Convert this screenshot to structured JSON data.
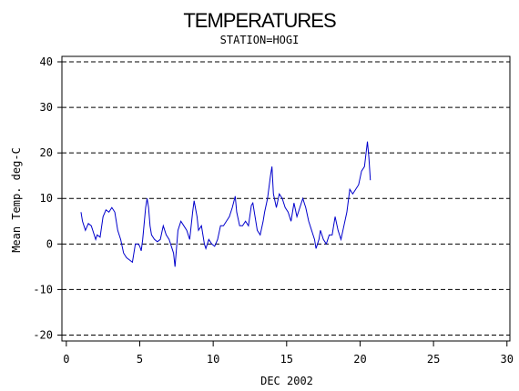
{
  "chart_data": {
    "type": "line",
    "title": "TEMPERATURES",
    "subtitle": "STATION=HOGI",
    "x_label": "DEC 2002",
    "y_label": "Mean Temp. deg-C",
    "xlim": [
      -0.3,
      30.2
    ],
    "ylim": [
      -21.3,
      41.2
    ],
    "xticks": [
      0,
      5,
      10,
      15,
      20,
      25,
      30
    ],
    "yticks": [
      -20,
      -10,
      0,
      10,
      20,
      30,
      40
    ],
    "grid": true,
    "series": [
      {
        "name": "Mean Temp",
        "color": "#0000cc",
        "x": [
          1.0,
          1.1,
          1.3,
          1.5,
          1.7,
          1.9,
          2.0,
          2.1,
          2.3,
          2.5,
          2.7,
          2.9,
          3.1,
          3.3,
          3.5,
          3.7,
          3.9,
          4.1,
          4.3,
          4.5,
          4.7,
          4.9,
          5.0,
          5.1,
          5.2,
          5.4,
          5.5,
          5.6,
          5.7,
          5.8,
          6.0,
          6.2,
          6.4,
          6.6,
          6.8,
          7.0,
          7.2,
          7.3,
          7.4,
          7.5,
          7.6,
          7.8,
          8.0,
          8.2,
          8.4,
          8.6,
          8.7,
          8.9,
          9.0,
          9.2,
          9.4,
          9.5,
          9.7,
          9.9,
          10.1,
          10.3,
          10.5,
          10.7,
          10.9,
          11.1,
          11.3,
          11.5,
          11.6,
          11.8,
          12.0,
          12.2,
          12.4,
          12.6,
          12.7,
          12.9,
          13.0,
          13.2,
          13.4,
          13.5,
          13.7,
          13.9,
          14.0,
          14.1,
          14.3,
          14.5,
          14.7,
          14.9,
          15.1,
          15.3,
          15.5,
          15.7,
          15.9,
          16.1,
          16.3,
          16.5,
          16.7,
          16.9,
          17.0,
          17.2,
          17.3,
          17.5,
          17.7,
          17.9,
          18.1,
          18.3,
          18.5,
          18.7,
          18.9,
          19.1,
          19.3,
          19.5,
          19.7,
          19.9,
          20.1,
          20.3,
          20.5,
          20.6,
          20.7
        ],
        "values": [
          7,
          5,
          3,
          4.5,
          4,
          2,
          1,
          2,
          1.5,
          6,
          7.5,
          7,
          8,
          7,
          3,
          1,
          -2,
          -3,
          -3.5,
          -4,
          0,
          0,
          -0.5,
          -1.5,
          1,
          8,
          10,
          8,
          4,
          2,
          1,
          0.5,
          1,
          4,
          2,
          1,
          -1,
          -2,
          -5,
          -1,
          3,
          5,
          4,
          3,
          1,
          7,
          9.5,
          6,
          3,
          4,
          0,
          -1,
          1,
          0,
          -0.5,
          1,
          4,
          4,
          5,
          6,
          8,
          10.5,
          7,
          4,
          4,
          5,
          4,
          8.5,
          9,
          5,
          3,
          2,
          5,
          7,
          10,
          15,
          17,
          11,
          8,
          11,
          10,
          8,
          7,
          5,
          9,
          6,
          8,
          10,
          8,
          5,
          3,
          1,
          -1,
          1,
          3,
          1,
          0,
          2,
          2,
          6,
          3,
          1,
          4,
          7,
          12,
          11,
          12,
          13,
          16,
          17,
          22.5,
          19,
          14
        ]
      }
    ]
  }
}
